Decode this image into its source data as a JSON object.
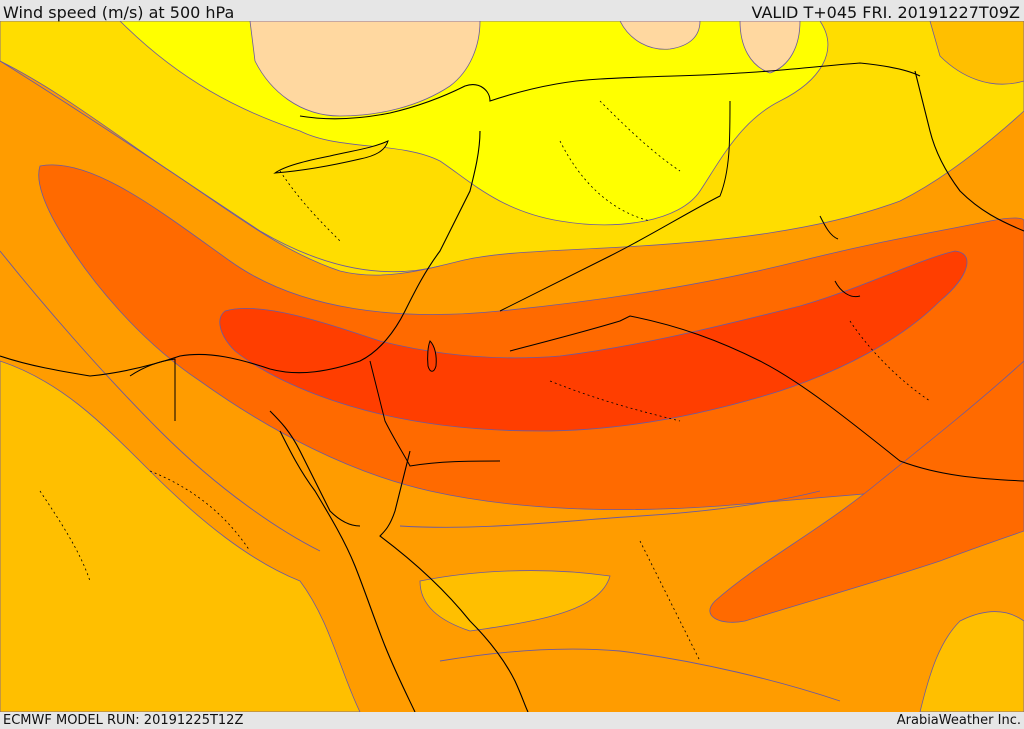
{
  "header": {
    "title": "Wind speed (m/s) at 500 hPa",
    "valid": "VALID T+045 FRI. 20191227T09Z"
  },
  "footer": {
    "model_run": "ECMWF MODEL RUN: 20191225T12Z",
    "credit": "ArabiaWeather Inc."
  },
  "colors": {
    "band_lowest": "#ffd8a0",
    "band_low": "#ffff00",
    "band_mid1": "#ffdd00",
    "band_mid2": "#ffbf00",
    "band_mid3": "#ff9c00",
    "band_high1": "#ff6a00",
    "band_high2": "#ff5a00",
    "band_max": "#ff3e00",
    "coastline": "#000000",
    "contour": "#6b5aa0"
  }
}
